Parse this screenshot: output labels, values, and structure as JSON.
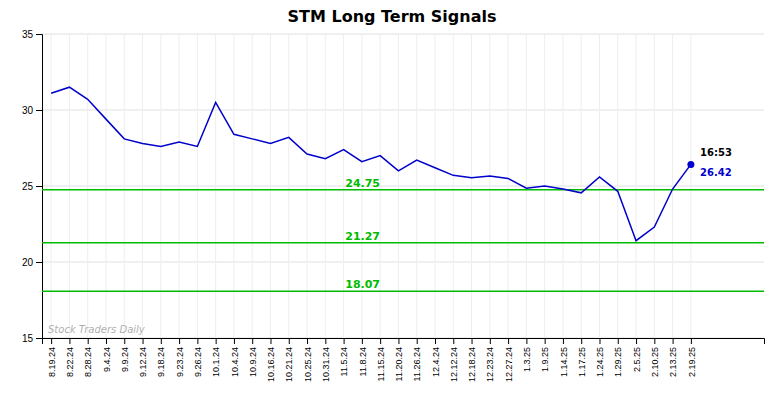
{
  "chart_data": {
    "type": "line",
    "title": "STM Long Term Signals",
    "categories": [
      "8.19.24",
      "8.22.24",
      "8.28.24",
      "9.4.24",
      "9.9.24",
      "9.12.24",
      "9.18.24",
      "9.23.24",
      "9.26.24",
      "10.1.24",
      "10.4.24",
      "10.9.24",
      "10.16.24",
      "10.21.24",
      "10.25.24",
      "10.31.24",
      "11.5.24",
      "11.8.24",
      "11.15.24",
      "11.20.24",
      "11.26.24",
      "12.4.24",
      "12.12.24",
      "12.18.24",
      "12.23.24",
      "12.27.24",
      "1.3.25",
      "1.9.25",
      "1.14.25",
      "1.17.25",
      "1.24.25",
      "1.29.25",
      "2.5.25",
      "2.10.25",
      "2.13.25",
      "2.19.25"
    ],
    "values": [
      31.1,
      31.5,
      30.7,
      29.4,
      28.1,
      27.8,
      27.6,
      27.9,
      27.6,
      30.5,
      28.4,
      28.1,
      27.8,
      28.2,
      27.1,
      26.8,
      27.4,
      26.6,
      27.0,
      26.0,
      26.7,
      26.2,
      25.7,
      25.55,
      25.65,
      25.5,
      24.85,
      25.0,
      24.8,
      24.55,
      25.6,
      24.65,
      21.4,
      22.3,
      24.8,
      26.42
    ],
    "color": "#0000cc",
    "ylim": [
      15,
      35
    ],
    "yticks": [
      15,
      20,
      25,
      30,
      35
    ],
    "grid": true,
    "hlines": [
      {
        "value": 24.75,
        "label": "24.75",
        "color": "#00bb00"
      },
      {
        "value": 21.27,
        "label": "21.27",
        "color": "#00bb00"
      },
      {
        "value": 18.07,
        "label": "18.07",
        "color": "#00bb00"
      }
    ],
    "last_point": {
      "label": "16:53",
      "value_label": "26.42"
    },
    "watermark": "Stock Traders Daily"
  }
}
